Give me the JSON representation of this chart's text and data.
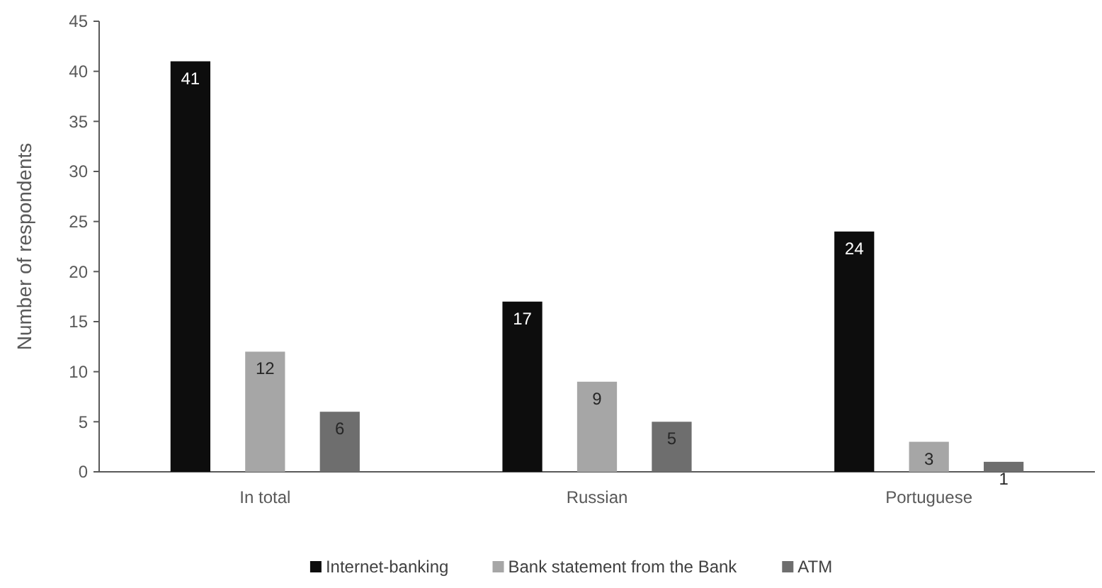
{
  "chart_data": {
    "type": "bar",
    "ylabel": "Number of respondents",
    "categories": [
      "In total",
      "Russian",
      "Portuguese"
    ],
    "series": [
      {
        "name": "Internet-banking",
        "color": "#0d0d0d",
        "values": [
          41,
          17,
          24
        ]
      },
      {
        "name": "Bank statement from the Bank",
        "color": "#a6a6a6",
        "values": [
          12,
          9,
          3
        ]
      },
      {
        "name": "ATM",
        "color": "#6e6e6e",
        "values": [
          6,
          5,
          1
        ]
      }
    ],
    "ylim": [
      0,
      45
    ],
    "yticks": [
      0,
      5,
      10,
      15,
      20,
      25,
      30,
      35,
      40,
      45
    ],
    "data_labels": true,
    "legend": "bottom",
    "grid": false
  }
}
